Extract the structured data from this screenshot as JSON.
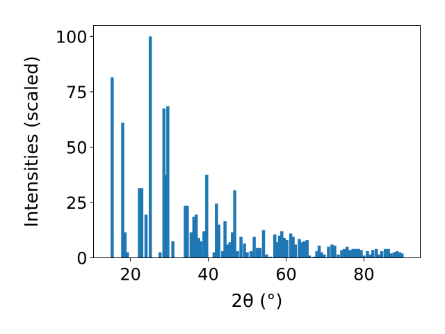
{
  "chart_data": {
    "type": "bar",
    "xlabel": "2θ (°)",
    "ylabel": "Intensities (scaled)",
    "xlim": [
      10.5,
      94.5
    ],
    "ylim": [
      0,
      105
    ],
    "xticks": [
      20,
      40,
      60,
      80
    ],
    "yticks": [
      0,
      25,
      50,
      75,
      100
    ],
    "grid": false,
    "bar_color": "#1f77b4",
    "bar_width": 0.8,
    "x": [
      15.3,
      18.0,
      18.6,
      19.2,
      22.3,
      22.9,
      24.0,
      25.1,
      27.6,
      28.6,
      29.1,
      29.6,
      30.9,
      34.1,
      34.6,
      35.6,
      36.3,
      36.9,
      37.5,
      38.1,
      38.9,
      39.6,
      41.5,
      42.1,
      42.7,
      43.7,
      44.3,
      45.0,
      45.6,
      46.2,
      46.8,
      47.5,
      48.4,
      49.3,
      50.0,
      51.0,
      51.8,
      52.6,
      53.3,
      54.2,
      55.0,
      56.0,
      57.1,
      57.7,
      58.3,
      58.9,
      59.5,
      60.2,
      61.2,
      61.8,
      62.4,
      63.4,
      64.1,
      64.7,
      65.4,
      66.0,
      67.2,
      67.9,
      68.5,
      69.1,
      69.8,
      70.9,
      71.8,
      72.5,
      73.4,
      74.3,
      75.0,
      75.7,
      76.4,
      77.2,
      77.9,
      78.6,
      79.3,
      80.0,
      80.9,
      81.7,
      82.3,
      83.2,
      83.9,
      84.6,
      85.5,
      86.3,
      87.0,
      87.8,
      88.5,
      89.2,
      89.8
    ],
    "values": [
      81.5,
      61,
      11.5,
      2.5,
      31.5,
      31.5,
      19.5,
      100,
      2.5,
      67.5,
      37.5,
      68.5,
      7.5,
      23.5,
      23.5,
      11.5,
      18.5,
      19.5,
      9,
      7.5,
      12,
      37.5,
      2.5,
      24.5,
      15,
      3,
      16.5,
      6,
      7,
      11.5,
      30.5,
      3,
      9.5,
      6.5,
      2.5,
      3,
      9.5,
      4.5,
      4.5,
      12.5,
      1.5,
      0.5,
      10.5,
      7,
      10,
      12,
      9,
      8,
      11,
      9.5,
      6,
      8.5,
      7,
      7.5,
      8,
      1,
      0.5,
      3,
      5.5,
      2.5,
      1.5,
      5,
      6,
      5.5,
      1.5,
      3.5,
      4,
      5,
      3.5,
      4,
      4,
      4,
      3.5,
      1,
      3,
      1.5,
      3.5,
      4,
      1.5,
      3,
      4,
      4,
      2,
      2.5,
      3,
      2.5,
      2
    ]
  }
}
